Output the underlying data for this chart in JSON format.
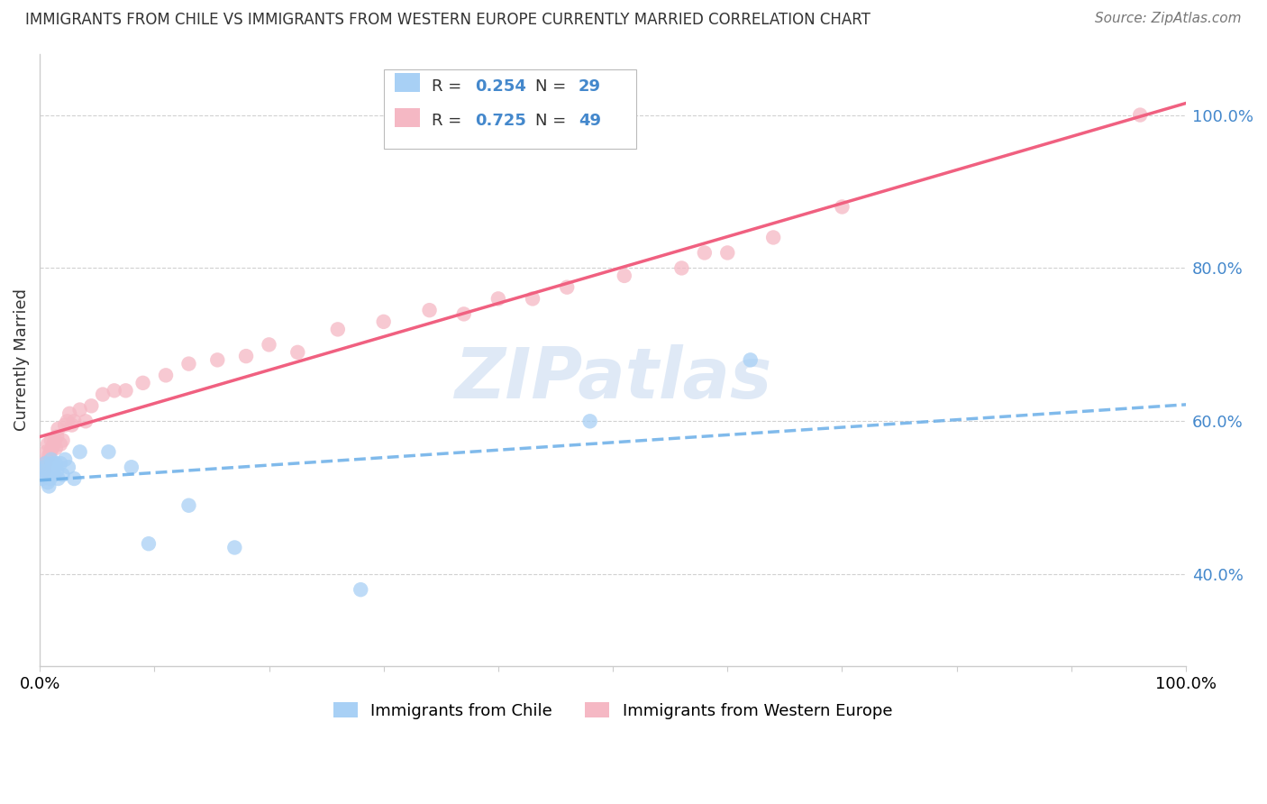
{
  "title": "IMMIGRANTS FROM CHILE VS IMMIGRANTS FROM WESTERN EUROPE CURRENTLY MARRIED CORRELATION CHART",
  "source": "Source: ZipAtlas.com",
  "ylabel": "Currently Married",
  "legend_label1": "Immigrants from Chile",
  "legend_label2": "Immigrants from Western Europe",
  "R1": 0.254,
  "N1": 29,
  "R2": 0.725,
  "N2": 49,
  "color_chile": "#a8d0f5",
  "color_chile_line": "#6aaee8",
  "color_we": "#f5b8c4",
  "color_we_line": "#f06080",
  "watermark_color": "#c5d8f0",
  "ytick_color": "#4488cc",
  "chile_x": [
    0.002,
    0.003,
    0.004,
    0.005,
    0.006,
    0.007,
    0.008,
    0.009,
    0.01,
    0.011,
    0.012,
    0.013,
    0.014,
    0.015,
    0.016,
    0.018,
    0.02,
    0.022,
    0.025,
    0.03,
    0.035,
    0.06,
    0.08,
    0.095,
    0.13,
    0.17,
    0.28,
    0.48,
    0.62
  ],
  "chile_y": [
    0.525,
    0.535,
    0.54,
    0.545,
    0.53,
    0.52,
    0.515,
    0.525,
    0.55,
    0.545,
    0.53,
    0.54,
    0.545,
    0.535,
    0.525,
    0.545,
    0.53,
    0.55,
    0.54,
    0.525,
    0.56,
    0.56,
    0.54,
    0.44,
    0.49,
    0.435,
    0.38,
    0.6,
    0.68
  ],
  "we_x": [
    0.002,
    0.003,
    0.004,
    0.005,
    0.006,
    0.007,
    0.008,
    0.009,
    0.01,
    0.011,
    0.012,
    0.013,
    0.014,
    0.015,
    0.016,
    0.018,
    0.02,
    0.022,
    0.024,
    0.026,
    0.028,
    0.03,
    0.035,
    0.04,
    0.045,
    0.055,
    0.065,
    0.075,
    0.09,
    0.11,
    0.13,
    0.155,
    0.18,
    0.2,
    0.225,
    0.26,
    0.3,
    0.34,
    0.37,
    0.4,
    0.43,
    0.46,
    0.51,
    0.56,
    0.58,
    0.6,
    0.64,
    0.7,
    0.96
  ],
  "we_y": [
    0.54,
    0.545,
    0.535,
    0.545,
    0.56,
    0.57,
    0.555,
    0.56,
    0.575,
    0.565,
    0.57,
    0.575,
    0.565,
    0.58,
    0.59,
    0.57,
    0.575,
    0.595,
    0.6,
    0.61,
    0.595,
    0.6,
    0.615,
    0.6,
    0.62,
    0.635,
    0.64,
    0.64,
    0.65,
    0.66,
    0.675,
    0.68,
    0.685,
    0.7,
    0.69,
    0.72,
    0.73,
    0.745,
    0.74,
    0.76,
    0.76,
    0.775,
    0.79,
    0.8,
    0.82,
    0.82,
    0.84,
    0.88,
    1.0
  ],
  "yticks": [
    0.4,
    0.6,
    0.8,
    1.0
  ],
  "ytick_labels": [
    "40.0%",
    "60.0%",
    "80.0%",
    "100.0%"
  ],
  "xlim": [
    0.0,
    1.0
  ],
  "ylim": [
    0.28,
    1.08
  ],
  "xticks": [
    0.0,
    0.1,
    0.2,
    0.3,
    0.4,
    0.5,
    0.6,
    0.7,
    0.8,
    0.9,
    1.0
  ],
  "xtick_labels_show": [
    0.0,
    1.0
  ],
  "grid_color": "#cccccc",
  "spine_color": "#cccccc"
}
